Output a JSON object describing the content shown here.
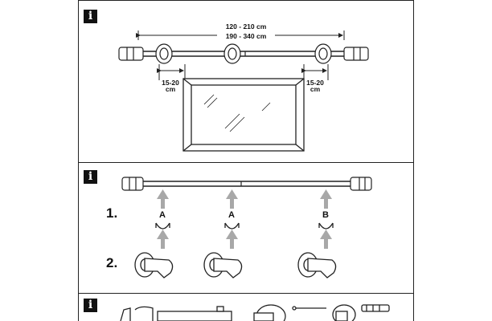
{
  "section1": {
    "info_icon": "i",
    "total_length_short": "120 - 210 cm",
    "total_length_long": "190 - 340 cm",
    "overhang_left_value": "15-20",
    "overhang_left_unit": "cm",
    "overhang_right_value": "15-20",
    "overhang_right_unit": "cm"
  },
  "section2": {
    "info_icon": "i",
    "step1": "1.",
    "step2": "2.",
    "bracket_labels": [
      "A",
      "A",
      "B"
    ]
  },
  "section3": {
    "info_icon": "i"
  },
  "icons": {
    "info": "info-icon",
    "arrow": "arrow-up-icon"
  },
  "colors": {
    "line": "#222222",
    "arrow_gray": "#a8a8a8",
    "ink": "#111111"
  }
}
